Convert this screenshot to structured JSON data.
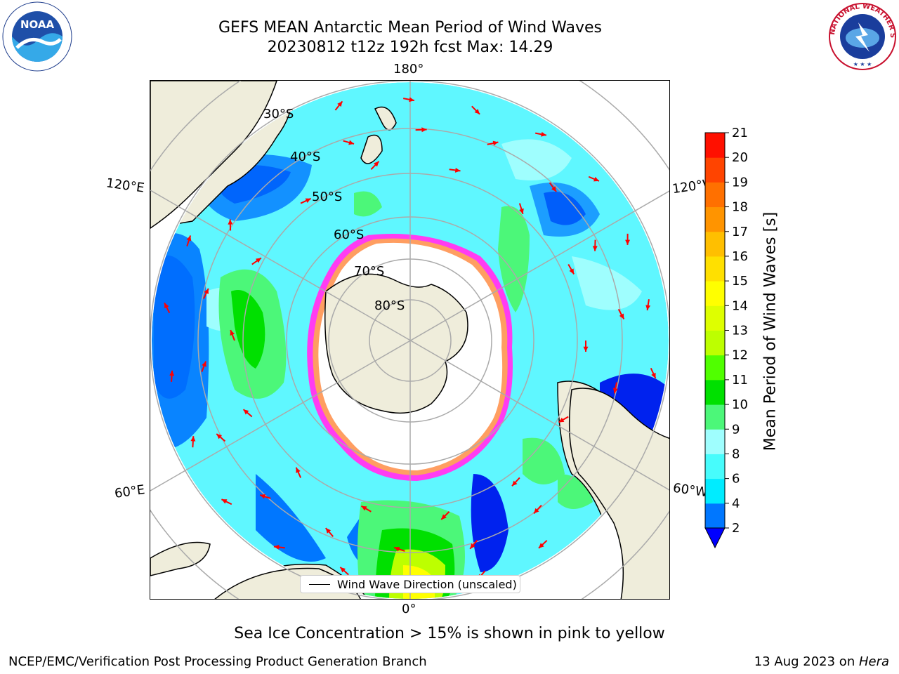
{
  "header": {
    "title_line1": "GEFS MEAN Antarctic Mean Period of Wind Waves",
    "title_line2": "20230812 t12z 192h fcst   Max: 14.29"
  },
  "logos": {
    "noaa": {
      "text": "NOAA",
      "icon": "noaa-logo-icon"
    },
    "nws": {
      "text": "NATIONAL WEATHER SERVICE",
      "icon": "nws-logo-icon"
    }
  },
  "map": {
    "projection": "south-polar-stereographic",
    "longitude_labels": {
      "top": "180°",
      "bottom": "0°",
      "left_upper": "120°E",
      "left_lower": "60°E",
      "right_upper": "120°W",
      "right_lower": "60°W"
    },
    "latitude_labels": [
      "30°S",
      "40°S",
      "50°S",
      "60°S",
      "70°S",
      "80°S"
    ],
    "colors": {
      "land": "#efeddb",
      "ice_free": "#ffffff",
      "ocean_base": "#5ff7ff",
      "sea_ice_edge": "#ff3cf2",
      "arrow": "#ff0000"
    }
  },
  "colorbar": {
    "label": "Mean Period of Wind Waves [s]",
    "ticks": [
      "2",
      "4",
      "6",
      "8",
      "9",
      "10",
      "11",
      "12",
      "13",
      "14",
      "15",
      "16",
      "17",
      "18",
      "19",
      "20",
      "21"
    ],
    "colors": [
      "#0077ff",
      "#00ecff",
      "#47fcfc",
      "#9ffefe",
      "#4cf779",
      "#00e000",
      "#50ff00",
      "#bdff00",
      "#deff00",
      "#ffff00",
      "#ffe000",
      "#ffbf00",
      "#ff9400",
      "#ff7000",
      "#ff4400",
      "#ff1000"
    ],
    "extend_color": "#0000ff"
  },
  "legend": {
    "label": "Wind Wave Direction (unscaled)"
  },
  "footer": {
    "sea_ice_note": "Sea Ice Concentration > 15% is shown in pink to yellow",
    "credit": "NCEP/EMC/Verification Post Processing Product Generation Branch",
    "date": "13 Aug 2023 on ",
    "host": "Hera"
  }
}
